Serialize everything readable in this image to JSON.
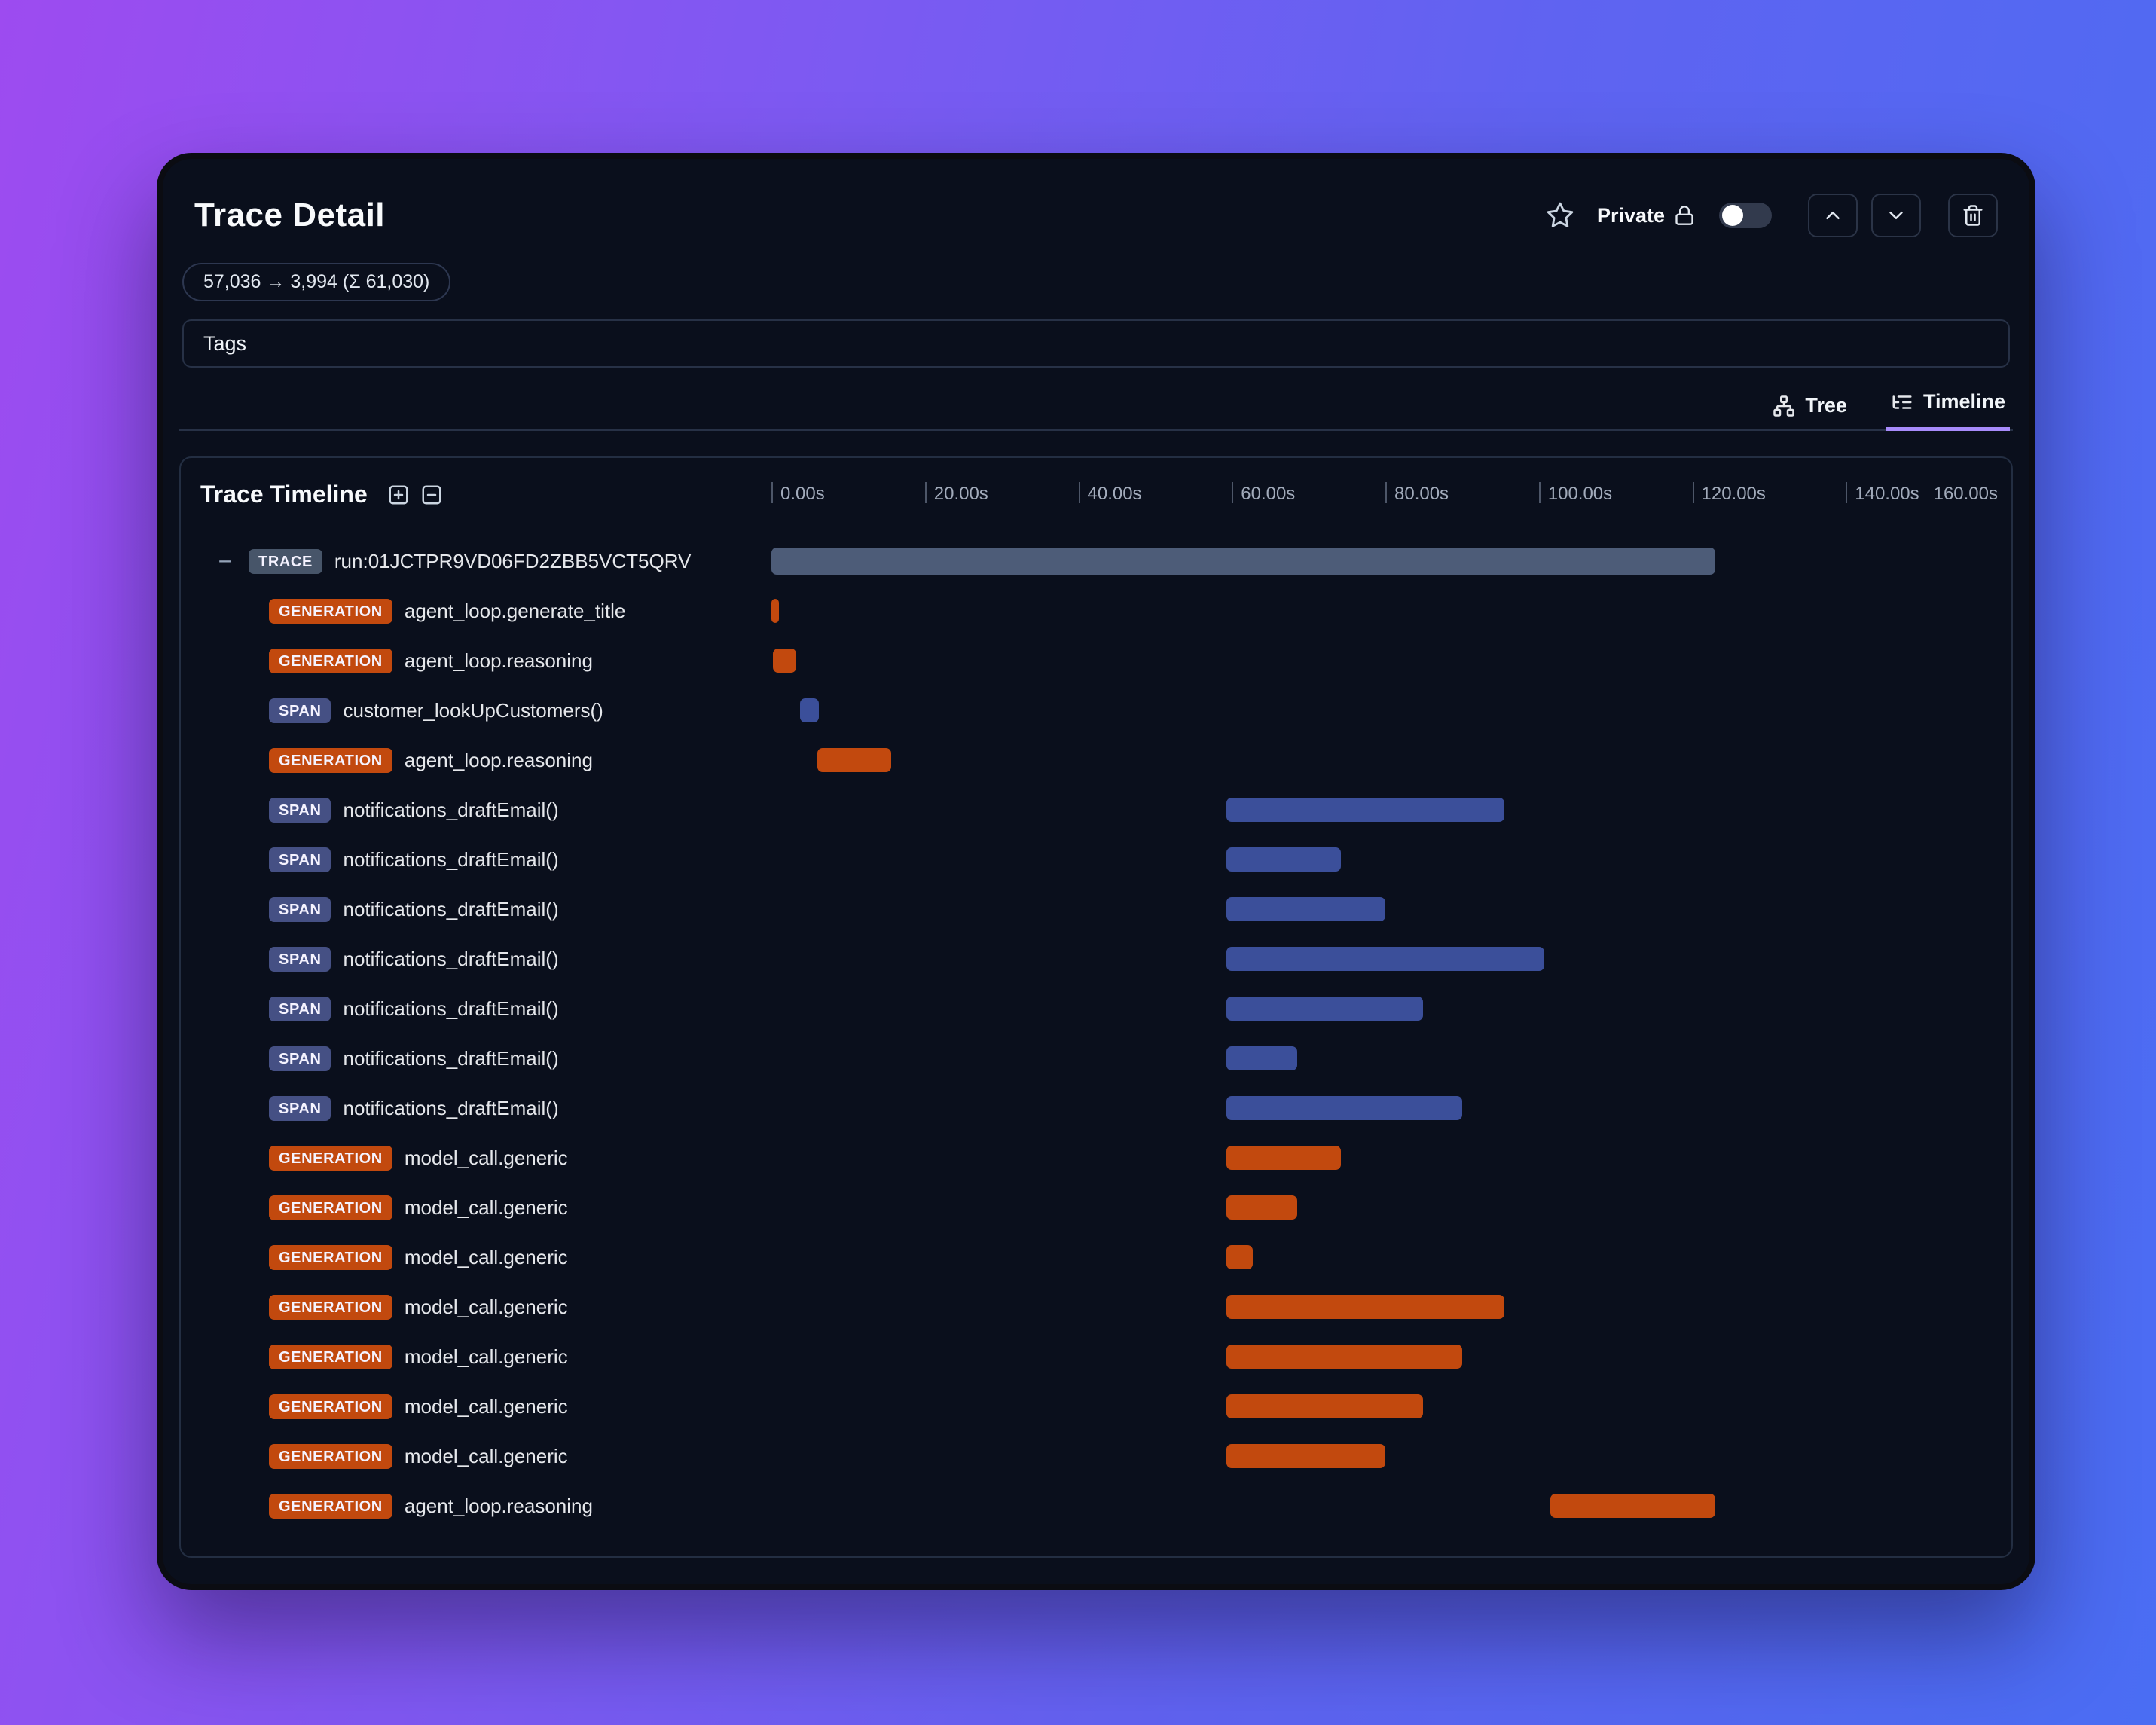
{
  "header": {
    "title": "Trace Detail",
    "privacy_label": "Private",
    "privacy_toggle_on": false,
    "token_usage": "57,036 → 3,994 (Σ 61,030)",
    "tags_label": "Tags"
  },
  "view_tabs": [
    {
      "label": "Tree",
      "active": false
    },
    {
      "label": "Timeline",
      "active": true
    }
  ],
  "timeline": {
    "title": "Trace Timeline",
    "axis": {
      "unit": "seconds",
      "range_seconds": [
        0,
        160
      ],
      "ticks": [
        {
          "label": "0.00s",
          "t": 0
        },
        {
          "label": "20.00s",
          "t": 20
        },
        {
          "label": "40.00s",
          "t": 40
        },
        {
          "label": "60.00s",
          "t": 60
        },
        {
          "label": "80.00s",
          "t": 80
        },
        {
          "label": "100.00s",
          "t": 100
        },
        {
          "label": "120.00s",
          "t": 120
        },
        {
          "label": "140.00s",
          "t": 140
        },
        {
          "label": "160.00s",
          "t": 160,
          "edge_right": true
        }
      ]
    },
    "rows": [
      {
        "badge": "TRACE",
        "label": "run:01JCTPR9VD06FD2ZBB5VCT5QRV",
        "start": 0,
        "end": 123,
        "level": 0
      },
      {
        "badge": "GENERATION",
        "label": "agent_loop.generate_title",
        "start": 0,
        "end": 1,
        "level": 1
      },
      {
        "badge": "GENERATION",
        "label": "agent_loop.reasoning",
        "start": 0.2,
        "end": 3.2,
        "level": 1
      },
      {
        "badge": "SPAN",
        "label": "customer_lookUpCustomers()",
        "start": 3.7,
        "end": 6.2,
        "level": 1
      },
      {
        "badge": "GENERATION",
        "label": "agent_loop.reasoning",
        "start": 6,
        "end": 15.6,
        "level": 1
      },
      {
        "badge": "SPAN",
        "label": "notifications_draftEmail()",
        "start": 59.3,
        "end": 95.5,
        "level": 1
      },
      {
        "badge": "SPAN",
        "label": "notifications_draftEmail()",
        "start": 59.3,
        "end": 74.2,
        "level": 1
      },
      {
        "badge": "SPAN",
        "label": "notifications_draftEmail()",
        "start": 59.3,
        "end": 80,
        "level": 1
      },
      {
        "badge": "SPAN",
        "label": "notifications_draftEmail()",
        "start": 59.3,
        "end": 100.7,
        "level": 1
      },
      {
        "badge": "SPAN",
        "label": "notifications_draftEmail()",
        "start": 59.3,
        "end": 84.9,
        "level": 1
      },
      {
        "badge": "SPAN",
        "label": "notifications_draftEmail()",
        "start": 59.3,
        "end": 68.5,
        "level": 1
      },
      {
        "badge": "SPAN",
        "label": "notifications_draftEmail()",
        "start": 59.3,
        "end": 90,
        "level": 1
      },
      {
        "badge": "GENERATION",
        "label": "model_call.generic",
        "start": 59.3,
        "end": 74.2,
        "level": 1
      },
      {
        "badge": "GENERATION",
        "label": "model_call.generic",
        "start": 59.3,
        "end": 68.5,
        "level": 1
      },
      {
        "badge": "GENERATION",
        "label": "model_call.generic",
        "start": 59.3,
        "end": 62.7,
        "level": 1
      },
      {
        "badge": "GENERATION",
        "label": "model_call.generic",
        "start": 59.3,
        "end": 95.5,
        "level": 1
      },
      {
        "badge": "GENERATION",
        "label": "model_call.generic",
        "start": 59.3,
        "end": 90,
        "level": 1
      },
      {
        "badge": "GENERATION",
        "label": "model_call.generic",
        "start": 59.3,
        "end": 84.9,
        "level": 1
      },
      {
        "badge": "GENERATION",
        "label": "model_call.generic",
        "start": 59.3,
        "end": 80,
        "level": 1
      },
      {
        "badge": "GENERATION",
        "label": "agent_loop.reasoning",
        "start": 101.5,
        "end": 123,
        "level": 1
      }
    ]
  },
  "colors": {
    "accent_purple": "#a78bfa",
    "trace": "#4d5c78",
    "generation": "#c2490e",
    "span": "#3b4f9a",
    "trace_badge": "#475569",
    "generation_badge": "#c2490e",
    "span_badge": "#455084"
  }
}
